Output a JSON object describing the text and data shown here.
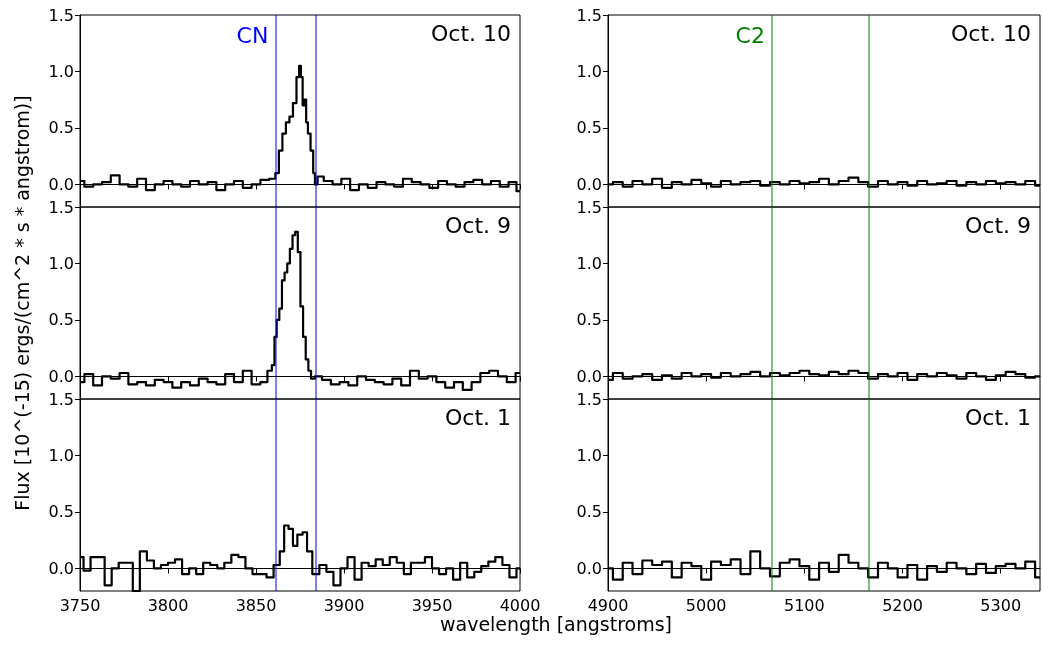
{
  "chart_data": [
    {
      "type": "step",
      "title": "Oct. 10",
      "ylabel": null,
      "color": "#000000",
      "tick_labels": "y",
      "xlim": [
        3750,
        4000
      ],
      "xticks": [
        3750,
        3800,
        3850,
        3900,
        3950,
        4000
      ],
      "ylim": [
        -0.2,
        1.5
      ],
      "yticks": [
        {
          "value": 0,
          "label": "0.0"
        },
        {
          "value": 0.5,
          "label": "0.5"
        },
        {
          "value": 1,
          "label": "1.0"
        },
        {
          "value": 1.5,
          "label": "1.5"
        }
      ],
      "ref_lines": [
        {
          "axis": "x",
          "value": 3861,
          "label": "CN",
          "color": "#0000ff"
        },
        {
          "axis": "x",
          "value": 3884,
          "color": "#0000ff"
        }
      ],
      "x": [
        3750,
        3755,
        3760,
        3765,
        3770,
        3775,
        3780,
        3785,
        3790,
        3795,
        3800,
        3805,
        3810,
        3815,
        3820,
        3825,
        3830,
        3835,
        3840,
        3845,
        3850,
        3855,
        3860,
        3862,
        3864,
        3866,
        3868,
        3870,
        3872,
        3874,
        3875,
        3876,
        3877,
        3878,
        3879,
        3880,
        3882,
        3883,
        3884,
        3886,
        3891,
        3896,
        3901,
        3906,
        3911,
        3916,
        3921,
        3926,
        3931,
        3936,
        3941,
        3946,
        3951,
        3956,
        3961,
        3966,
        3971,
        3976,
        3981,
        3986,
        3991,
        3996,
        4000
      ],
      "values": [
        0.03,
        -0.02,
        0.0,
        0.02,
        0.08,
        0.0,
        -0.02,
        0.05,
        -0.05,
        0.0,
        0.03,
        0.0,
        -0.02,
        0.03,
        0.0,
        0.02,
        -0.05,
        0.0,
        0.03,
        -0.03,
        0.0,
        0.04,
        0.05,
        0.1,
        0.3,
        0.45,
        0.55,
        0.6,
        0.72,
        0.95,
        1.05,
        0.95,
        0.7,
        0.75,
        0.55,
        0.45,
        0.3,
        0.1,
        0.0,
        0.07,
        0.03,
        0.0,
        0.05,
        -0.05,
        0.0,
        -0.03,
        0.02,
        0.0,
        -0.02,
        0.05,
        0.02,
        0.0,
        -0.03,
        0.03,
        0.0,
        -0.02,
        0.02,
        0.04,
        0.0,
        0.03,
        -0.02,
        0.02,
        -0.06
      ]
    },
    {
      "type": "step",
      "title": "Oct. 10",
      "color": "#000000",
      "tick_labels": "y",
      "xlim": [
        4900,
        5340
      ],
      "xticks": [
        4900,
        5000,
        5100,
        5200,
        5300
      ],
      "ylim": [
        -0.2,
        1.5
      ],
      "yticks": [
        {
          "value": 0,
          "label": "0.0"
        },
        {
          "value": 0.5,
          "label": "0.5"
        },
        {
          "value": 1,
          "label": "1.0"
        },
        {
          "value": 1.5,
          "label": "1.5"
        }
      ],
      "ref_lines": [
        {
          "axis": "x",
          "value": 5067,
          "label": "C2",
          "color": "#008000"
        },
        {
          "axis": "x",
          "value": 5166,
          "color": "#008000"
        }
      ],
      "x": [
        4900,
        4910,
        4920,
        4930,
        4940,
        4950,
        4960,
        4970,
        4980,
        4990,
        5000,
        5010,
        5020,
        5030,
        5040,
        5050,
        5060,
        5070,
        5080,
        5090,
        5100,
        5110,
        5120,
        5130,
        5140,
        5150,
        5160,
        5170,
        5180,
        5190,
        5200,
        5210,
        5220,
        5230,
        5240,
        5250,
        5260,
        5270,
        5280,
        5290,
        5300,
        5310,
        5320,
        5330,
        5340
      ],
      "values": [
        0.0,
        0.02,
        -0.02,
        0.03,
        0.0,
        0.05,
        -0.03,
        0.02,
        0.0,
        0.04,
        0.01,
        -0.02,
        0.03,
        0.0,
        0.02,
        0.03,
        -0.01,
        0.02,
        0.0,
        0.03,
        0.01,
        0.02,
        0.05,
        0.0,
        0.03,
        0.06,
        0.02,
        -0.02,
        0.03,
        0.0,
        0.02,
        -0.01,
        0.03,
        0.0,
        0.01,
        0.03,
        -0.01,
        0.02,
        0.0,
        0.03,
        0.01,
        0.02,
        0.0,
        0.03,
        -0.01
      ]
    },
    {
      "type": "step",
      "title": "Oct. 9",
      "ylabel": "Flux [10^(-15) ergs/(cm^2 * s * angstrom)]",
      "color": "#000000",
      "tick_labels": "y",
      "xlim": [
        3750,
        4000
      ],
      "xticks": [
        3750,
        3800,
        3850,
        3900,
        3950,
        4000
      ],
      "ylim": [
        -0.2,
        1.5
      ],
      "yticks": [
        {
          "value": 0,
          "label": "0.0"
        },
        {
          "value": 0.5,
          "label": "0.5"
        },
        {
          "value": 1,
          "label": "1.0"
        },
        {
          "value": 1.5,
          "label": "1.5"
        }
      ],
      "ref_lines": [
        {
          "axis": "x",
          "value": 3861,
          "color": "#0000ff"
        },
        {
          "axis": "x",
          "value": 3884,
          "color": "#0000ff"
        }
      ],
      "x": [
        3750,
        3755,
        3760,
        3765,
        3770,
        3775,
        3780,
        3785,
        3790,
        3795,
        3800,
        3805,
        3810,
        3815,
        3820,
        3825,
        3830,
        3835,
        3840,
        3845,
        3850,
        3855,
        3858,
        3860,
        3861,
        3862.5,
        3864,
        3865.5,
        3867,
        3868.5,
        3870,
        3871.5,
        3873,
        3874.5,
        3876,
        3877.5,
        3879,
        3880.5,
        3882,
        3885,
        3890,
        3895,
        3900,
        3905,
        3910,
        3915,
        3920,
        3925,
        3930,
        3935,
        3940,
        3945,
        3950,
        3955,
        3960,
        3965,
        3970,
        3975,
        3980,
        3985,
        3990,
        3995,
        4000
      ],
      "values": [
        -0.05,
        0.02,
        -0.08,
        0.0,
        -0.02,
        0.03,
        -0.07,
        -0.05,
        -0.08,
        -0.03,
        -0.05,
        -0.1,
        -0.05,
        -0.08,
        -0.02,
        -0.05,
        -0.07,
        0.02,
        -0.05,
        0.05,
        -0.07,
        -0.05,
        0.05,
        0.1,
        0.35,
        0.5,
        0.6,
        0.85,
        0.92,
        1.0,
        1.13,
        1.25,
        1.28,
        1.1,
        0.62,
        0.35,
        0.15,
        0.05,
        -0.02,
        0.0,
        -0.03,
        -0.07,
        -0.05,
        -0.08,
        0.0,
        -0.03,
        -0.05,
        -0.07,
        -0.02,
        -0.08,
        0.05,
        -0.02,
        0.0,
        -0.05,
        -0.1,
        -0.05,
        -0.12,
        -0.05,
        0.03,
        0.05,
        0.0,
        -0.05,
        0.03
      ]
    },
    {
      "type": "step",
      "title": "Oct. 9",
      "color": "#000000",
      "tick_labels": "y",
      "xlim": [
        4900,
        5340
      ],
      "xticks": [
        4900,
        5000,
        5100,
        5200,
        5300
      ],
      "ylim": [
        -0.2,
        1.5
      ],
      "yticks": [
        {
          "value": 0,
          "label": "0.0"
        },
        {
          "value": 0.5,
          "label": "0.5"
        },
        {
          "value": 1,
          "label": "1.0"
        },
        {
          "value": 1.5,
          "label": "1.5"
        }
      ],
      "ref_lines": [
        {
          "axis": "x",
          "value": 5067,
          "color": "#008000"
        },
        {
          "axis": "x",
          "value": 5166,
          "color": "#008000"
        }
      ],
      "x": [
        4900,
        4910,
        4920,
        4930,
        4940,
        4950,
        4960,
        4970,
        4980,
        4990,
        5000,
        5010,
        5020,
        5030,
        5040,
        5050,
        5060,
        5070,
        5080,
        5090,
        5100,
        5110,
        5120,
        5130,
        5140,
        5150,
        5160,
        5170,
        5180,
        5190,
        5200,
        5210,
        5220,
        5230,
        5240,
        5250,
        5260,
        5270,
        5280,
        5290,
        5300,
        5310,
        5320,
        5330,
        5340
      ],
      "values": [
        -0.03,
        0.03,
        -0.02,
        0.0,
        0.02,
        -0.03,
        0.01,
        -0.02,
        0.03,
        0.0,
        0.02,
        -0.01,
        0.03,
        0.0,
        0.02,
        0.04,
        0.0,
        0.03,
        0.01,
        0.03,
        0.05,
        0.02,
        0.01,
        0.04,
        0.02,
        0.05,
        0.03,
        -0.02,
        0.02,
        0.0,
        0.03,
        -0.03,
        0.02,
        0.0,
        0.03,
        0.01,
        -0.02,
        0.03,
        0.0,
        -0.03,
        0.01,
        0.04,
        0.02,
        -0.01,
        0.0
      ]
    },
    {
      "type": "step",
      "title": "Oct. 1",
      "xlabel": "wavelength [angstroms]",
      "color": "#000000",
      "xlim": [
        3750,
        4000
      ],
      "xticks": [
        3750,
        3800,
        3850,
        3900,
        3950,
        4000
      ],
      "ylim": [
        -0.2,
        1.5
      ],
      "yticks": [
        {
          "value": 0,
          "label": "0.0"
        },
        {
          "value": 0.5,
          "label": "0.5"
        },
        {
          "value": 1,
          "label": "1.0"
        },
        {
          "value": 1.5,
          "label": "1.5"
        }
      ],
      "ref_lines": [
        {
          "axis": "x",
          "value": 3861,
          "color": "#0000ff"
        },
        {
          "axis": "x",
          "value": 3884,
          "color": "#0000ff"
        }
      ],
      "x": [
        3750,
        3754,
        3758,
        3762,
        3766,
        3770,
        3774,
        3778,
        3782,
        3786,
        3790,
        3794,
        3798,
        3802,
        3806,
        3810,
        3814,
        3818,
        3822,
        3826,
        3830,
        3834,
        3838,
        3842,
        3846,
        3850,
        3854,
        3858,
        3862,
        3865,
        3867,
        3870,
        3872,
        3875,
        3878,
        3880,
        3884,
        3888,
        3892,
        3896,
        3900,
        3904,
        3908,
        3912,
        3916,
        3920,
        3924,
        3928,
        3932,
        3936,
        3940,
        3944,
        3948,
        3952,
        3956,
        3960,
        3964,
        3968,
        3972,
        3976,
        3980,
        3984,
        3988,
        3992,
        3996,
        4000
      ],
      "values": [
        0.1,
        -0.02,
        0.1,
        0.1,
        -0.15,
        0.0,
        0.05,
        0.05,
        -0.2,
        0.15,
        0.07,
        0.0,
        0.03,
        0.05,
        0.08,
        -0.05,
        0.0,
        -0.05,
        0.05,
        0.03,
        0.0,
        0.05,
        0.12,
        0.1,
        0.0,
        -0.05,
        -0.05,
        -0.08,
        0.03,
        0.15,
        0.38,
        0.35,
        0.2,
        0.3,
        0.32,
        0.15,
        -0.05,
        0.03,
        -0.03,
        -0.15,
        0.0,
        0.1,
        -0.1,
        0.05,
        0.02,
        0.08,
        0.03,
        0.1,
        0.05,
        -0.05,
        0.05,
        0.05,
        0.1,
        0.0,
        -0.05,
        0.0,
        -0.1,
        0.05,
        -0.08,
        -0.03,
        0.02,
        0.06,
        0.1,
        0.03,
        -0.08,
        0.0
      ]
    },
    {
      "type": "step",
      "title": "Oct. 1",
      "color": "#000000",
      "xlim": [
        4900,
        5340
      ],
      "xticks": [
        4900,
        5000,
        5100,
        5200,
        5300
      ],
      "ylim": [
        -0.2,
        1.5
      ],
      "yticks": [
        {
          "value": 0,
          "label": "0.0"
        },
        {
          "value": 0.5,
          "label": "0.5"
        },
        {
          "value": 1,
          "label": "1.0"
        },
        {
          "value": 1.5,
          "label": "1.5"
        }
      ],
      "ref_lines": [
        {
          "axis": "x",
          "value": 5067,
          "color": "#008000"
        },
        {
          "axis": "x",
          "value": 5166,
          "color": "#008000"
        }
      ],
      "x": [
        4900,
        4910,
        4920,
        4930,
        4940,
        4950,
        4960,
        4970,
        4980,
        4990,
        5000,
        5010,
        5020,
        5030,
        5040,
        5050,
        5060,
        5070,
        5080,
        5090,
        5100,
        5110,
        5120,
        5130,
        5140,
        5150,
        5160,
        5170,
        5180,
        5190,
        5200,
        5210,
        5220,
        5230,
        5240,
        5250,
        5260,
        5270,
        5280,
        5290,
        5300,
        5310,
        5320,
        5330,
        5340
      ],
      "values": [
        0.0,
        -0.1,
        0.05,
        -0.05,
        0.07,
        0.03,
        0.06,
        -0.08,
        0.05,
        0.02,
        -0.1,
        0.06,
        0.03,
        0.08,
        -0.05,
        0.15,
        0.0,
        -0.07,
        0.05,
        0.08,
        0.02,
        -0.1,
        0.05,
        -0.03,
        0.12,
        0.05,
        0.0,
        -0.08,
        0.05,
        0.0,
        -0.08,
        0.03,
        -0.1,
        0.02,
        -0.03,
        0.05,
        0.0,
        -0.05,
        0.04,
        -0.04,
        0.02,
        0.04,
        0.0,
        0.06,
        -0.08
      ]
    }
  ]
}
